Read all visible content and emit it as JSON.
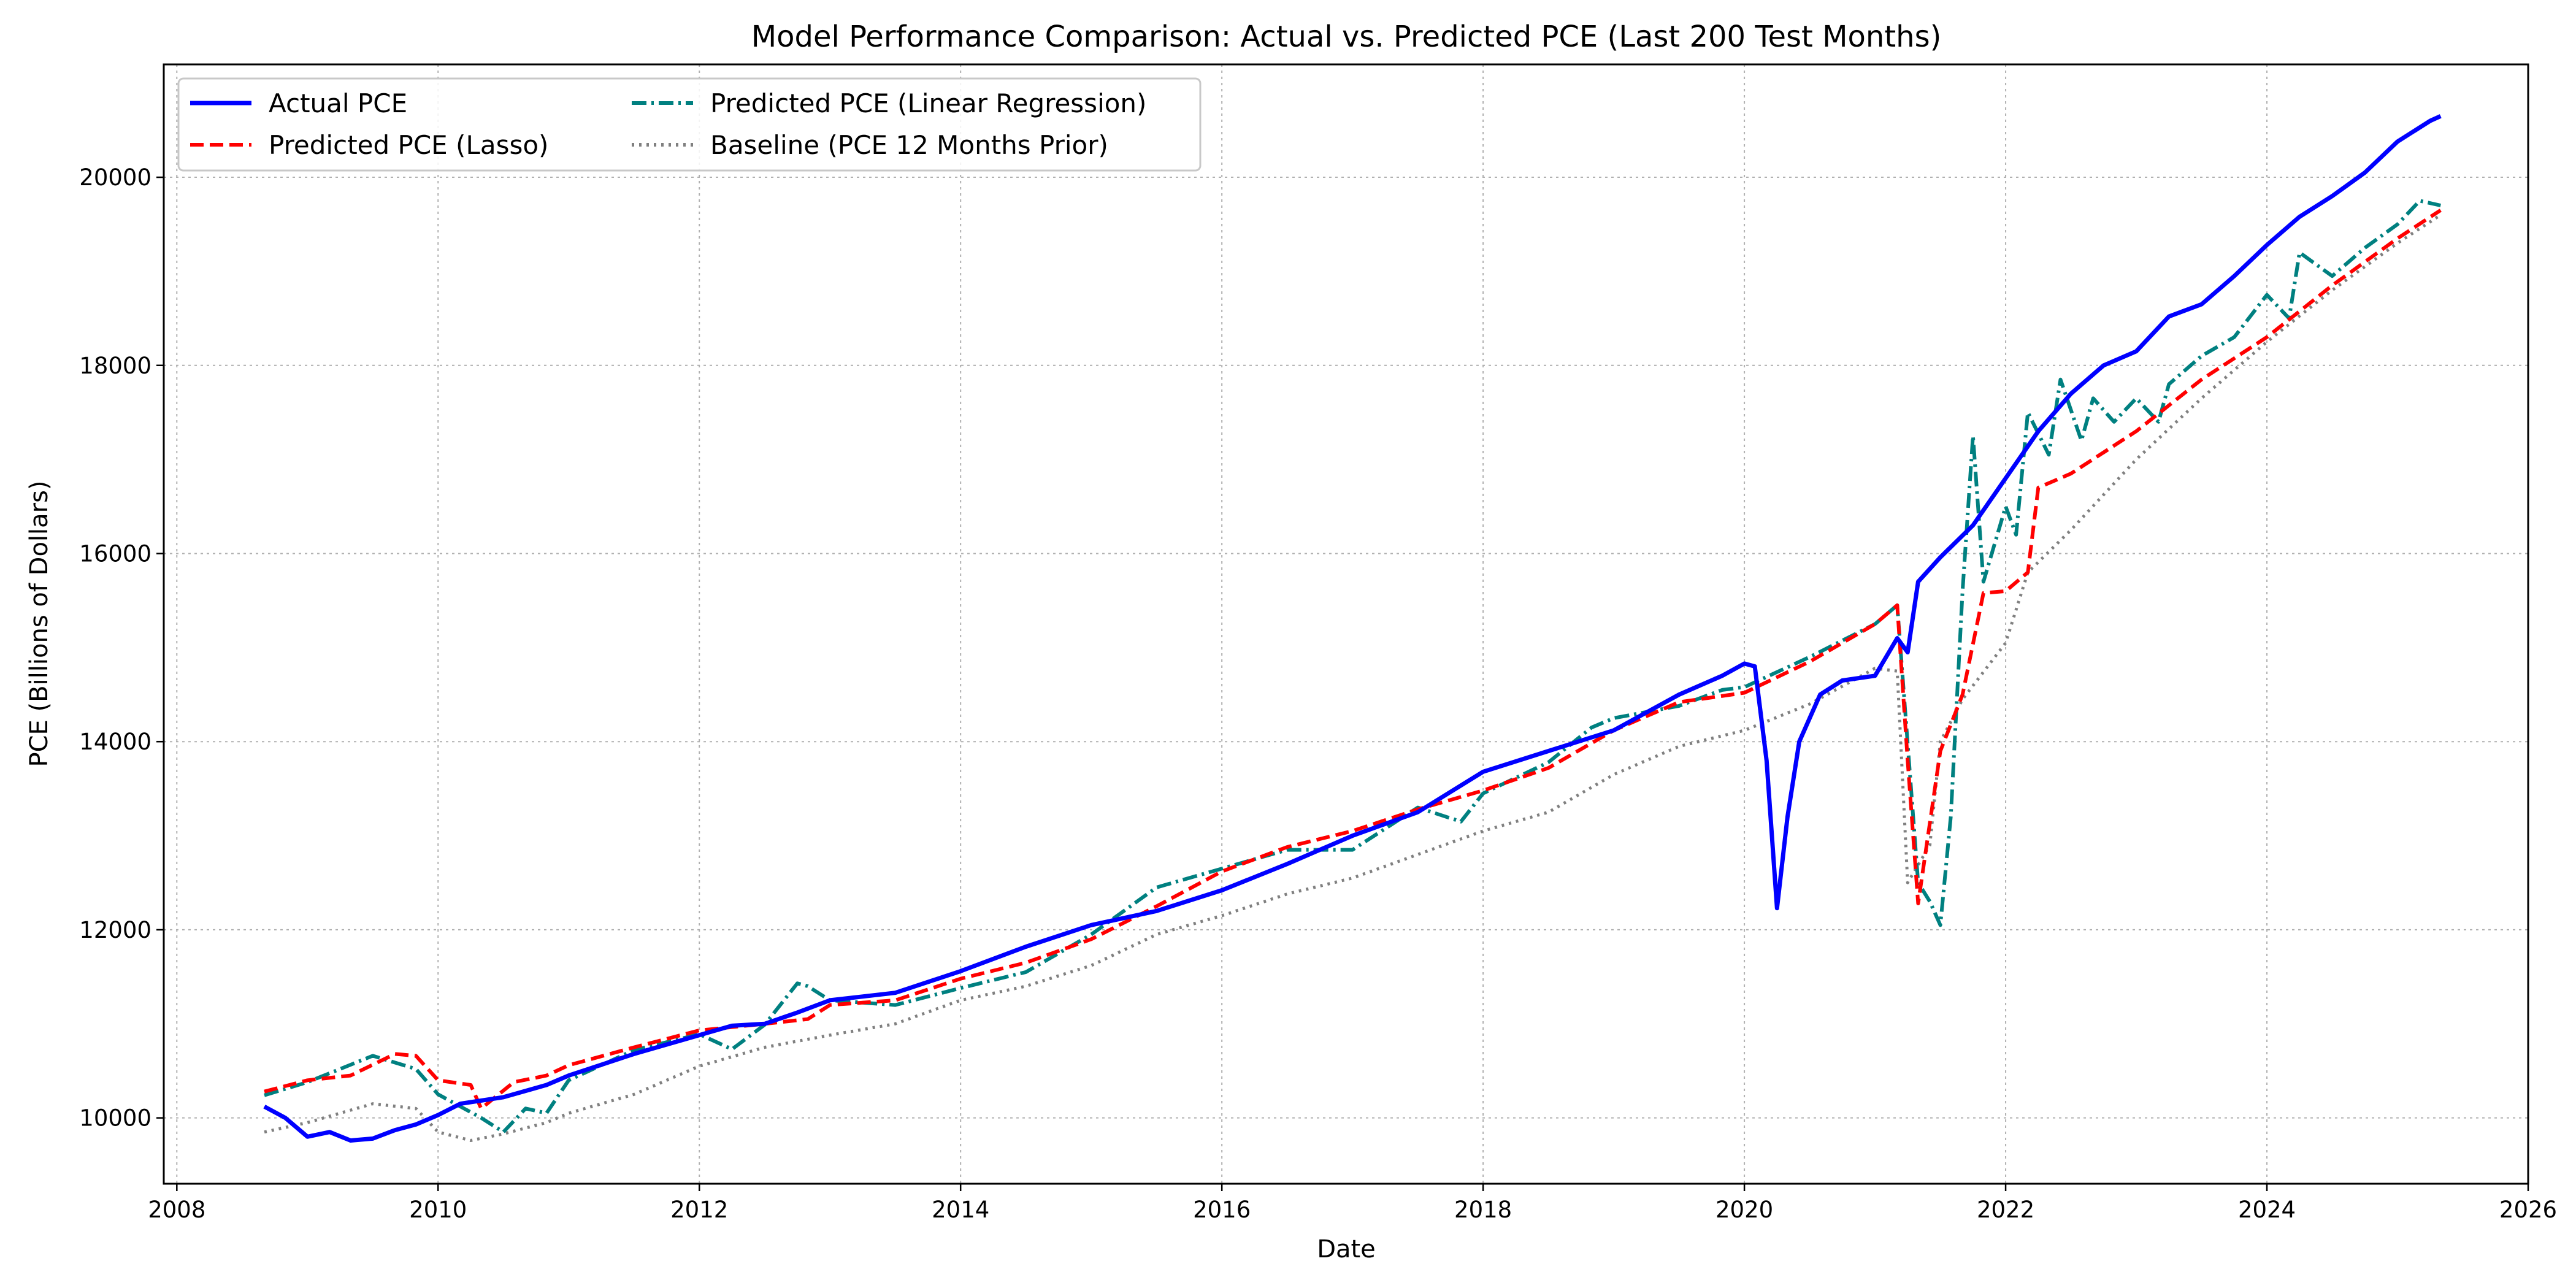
{
  "chart_data": {
    "type": "line",
    "title": "Model Performance Comparison: Actual vs. Predicted PCE (Last 200 Test Months)",
    "xlabel": "Date",
    "ylabel": "PCE (Billions of Dollars)",
    "xlim": [
      2007.9,
      2026.0
    ],
    "ylim": [
      9300,
      21200
    ],
    "x_ticks": [
      2008,
      2010,
      2012,
      2014,
      2016,
      2018,
      2020,
      2022,
      2024,
      2026
    ],
    "y_ticks": [
      10000,
      12000,
      14000,
      16000,
      18000,
      20000
    ],
    "grid": true,
    "legend_position": "top-left",
    "series": [
      {
        "name": "Actual PCE",
        "color": "#0000ff",
        "style": "solid",
        "points": [
          [
            2008.67,
            10120
          ],
          [
            2008.83,
            10000
          ],
          [
            2009.0,
            9800
          ],
          [
            2009.17,
            9850
          ],
          [
            2009.33,
            9760
          ],
          [
            2009.5,
            9780
          ],
          [
            2009.67,
            9870
          ],
          [
            2009.83,
            9930
          ],
          [
            2010.0,
            10030
          ],
          [
            2010.17,
            10150
          ],
          [
            2010.5,
            10220
          ],
          [
            2010.83,
            10350
          ],
          [
            2011.0,
            10450
          ],
          [
            2011.5,
            10680
          ],
          [
            2012.0,
            10880
          ],
          [
            2012.25,
            10980
          ],
          [
            2012.5,
            11000
          ],
          [
            2012.75,
            11120
          ],
          [
            2013.0,
            11250
          ],
          [
            2013.5,
            11330
          ],
          [
            2014.0,
            11560
          ],
          [
            2014.5,
            11820
          ],
          [
            2015.0,
            12050
          ],
          [
            2015.5,
            12200
          ],
          [
            2016.0,
            12420
          ],
          [
            2016.5,
            12700
          ],
          [
            2017.0,
            13000
          ],
          [
            2017.5,
            13250
          ],
          [
            2018.0,
            13680
          ],
          [
            2018.5,
            13900
          ],
          [
            2019.0,
            14120
          ],
          [
            2019.5,
            14500
          ],
          [
            2019.83,
            14700
          ],
          [
            2020.0,
            14830
          ],
          [
            2020.08,
            14800
          ],
          [
            2020.17,
            13800
          ],
          [
            2020.25,
            12230
          ],
          [
            2020.33,
            13200
          ],
          [
            2020.42,
            14000
          ],
          [
            2020.58,
            14500
          ],
          [
            2020.75,
            14650
          ],
          [
            2021.0,
            14700
          ],
          [
            2021.17,
            15100
          ],
          [
            2021.25,
            14950
          ],
          [
            2021.33,
            15700
          ],
          [
            2021.5,
            15960
          ],
          [
            2021.75,
            16300
          ],
          [
            2022.0,
            16800
          ],
          [
            2022.25,
            17300
          ],
          [
            2022.5,
            17700
          ],
          [
            2022.75,
            18000
          ],
          [
            2023.0,
            18150
          ],
          [
            2023.25,
            18520
          ],
          [
            2023.5,
            18650
          ],
          [
            2023.75,
            18950
          ],
          [
            2024.0,
            19280
          ],
          [
            2024.25,
            19580
          ],
          [
            2024.5,
            19800
          ],
          [
            2024.75,
            20050
          ],
          [
            2025.0,
            20380
          ],
          [
            2025.25,
            20600
          ],
          [
            2025.33,
            20650
          ]
        ]
      },
      {
        "name": "Predicted PCE (Lasso)",
        "color": "#ff0000",
        "style": "dashed",
        "points": [
          [
            2008.67,
            10280
          ],
          [
            2009.0,
            10400
          ],
          [
            2009.33,
            10450
          ],
          [
            2009.67,
            10680
          ],
          [
            2009.83,
            10660
          ],
          [
            2010.0,
            10400
          ],
          [
            2010.25,
            10350
          ],
          [
            2010.33,
            10100
          ],
          [
            2010.58,
            10380
          ],
          [
            2010.83,
            10450
          ],
          [
            2011.0,
            10560
          ],
          [
            2011.5,
            10750
          ],
          [
            2012.0,
            10930
          ],
          [
            2012.5,
            11000
          ],
          [
            2012.83,
            11050
          ],
          [
            2013.0,
            11200
          ],
          [
            2013.5,
            11250
          ],
          [
            2014.0,
            11480
          ],
          [
            2014.5,
            11650
          ],
          [
            2015.0,
            11900
          ],
          [
            2015.5,
            12250
          ],
          [
            2016.0,
            12620
          ],
          [
            2016.5,
            12880
          ],
          [
            2017.0,
            13050
          ],
          [
            2017.5,
            13280
          ],
          [
            2018.0,
            13480
          ],
          [
            2018.5,
            13720
          ],
          [
            2019.0,
            14120
          ],
          [
            2019.5,
            14420
          ],
          [
            2020.0,
            14520
          ],
          [
            2020.5,
            14850
          ],
          [
            2021.0,
            15250
          ],
          [
            2021.17,
            15450
          ],
          [
            2021.25,
            13800
          ],
          [
            2021.33,
            12280
          ],
          [
            2021.5,
            13900
          ],
          [
            2021.67,
            14500
          ],
          [
            2021.83,
            15580
          ],
          [
            2022.0,
            15600
          ],
          [
            2022.17,
            15800
          ],
          [
            2022.25,
            16700
          ],
          [
            2022.5,
            16850
          ],
          [
            2023.0,
            17300
          ],
          [
            2023.5,
            17850
          ],
          [
            2024.0,
            18300
          ],
          [
            2024.5,
            18850
          ],
          [
            2025.0,
            19350
          ],
          [
            2025.33,
            19650
          ]
        ]
      },
      {
        "name": "Predicted PCE (Linear Regression)",
        "color": "#008080",
        "style": "dashdot",
        "points": [
          [
            2008.67,
            10240
          ],
          [
            2009.0,
            10380
          ],
          [
            2009.5,
            10660
          ],
          [
            2009.83,
            10520
          ],
          [
            2010.0,
            10250
          ],
          [
            2010.33,
            10000
          ],
          [
            2010.5,
            9850
          ],
          [
            2010.67,
            10100
          ],
          [
            2010.83,
            10050
          ],
          [
            2011.0,
            10400
          ],
          [
            2011.5,
            10720
          ],
          [
            2012.0,
            10890
          ],
          [
            2012.25,
            10730
          ],
          [
            2012.5,
            10990
          ],
          [
            2012.75,
            11430
          ],
          [
            2012.83,
            11400
          ],
          [
            2013.0,
            11250
          ],
          [
            2013.5,
            11200
          ],
          [
            2014.0,
            11380
          ],
          [
            2014.5,
            11550
          ],
          [
            2015.0,
            11950
          ],
          [
            2015.5,
            12450
          ],
          [
            2016.0,
            12650
          ],
          [
            2016.5,
            12850
          ],
          [
            2017.0,
            12850
          ],
          [
            2017.5,
            13300
          ],
          [
            2017.83,
            13150
          ],
          [
            2018.0,
            13450
          ],
          [
            2018.5,
            13780
          ],
          [
            2018.83,
            14150
          ],
          [
            2019.0,
            14250
          ],
          [
            2019.5,
            14380
          ],
          [
            2019.83,
            14550
          ],
          [
            2020.0,
            14580
          ],
          [
            2020.5,
            14900
          ],
          [
            2021.0,
            15250
          ],
          [
            2021.17,
            15450
          ],
          [
            2021.33,
            12500
          ],
          [
            2021.42,
            12300
          ],
          [
            2021.5,
            12050
          ],
          [
            2021.58,
            13200
          ],
          [
            2021.67,
            15600
          ],
          [
            2021.75,
            17250
          ],
          [
            2021.83,
            15700
          ],
          [
            2022.0,
            16500
          ],
          [
            2022.08,
            16200
          ],
          [
            2022.17,
            17500
          ],
          [
            2022.33,
            17050
          ],
          [
            2022.42,
            17850
          ],
          [
            2022.58,
            17200
          ],
          [
            2022.67,
            17650
          ],
          [
            2022.83,
            17400
          ],
          [
            2023.0,
            17650
          ],
          [
            2023.17,
            17400
          ],
          [
            2023.25,
            17800
          ],
          [
            2023.5,
            18100
          ],
          [
            2023.75,
            18300
          ],
          [
            2024.0,
            18750
          ],
          [
            2024.17,
            18500
          ],
          [
            2024.25,
            19200
          ],
          [
            2024.5,
            18950
          ],
          [
            2024.75,
            19250
          ],
          [
            2025.0,
            19500
          ],
          [
            2025.17,
            19750
          ],
          [
            2025.33,
            19700
          ]
        ]
      },
      {
        "name": "Baseline (PCE 12 Months Prior)",
        "color": "#808080",
        "style": "dotted",
        "points": [
          [
            2008.67,
            9850
          ],
          [
            2009.0,
            9950
          ],
          [
            2009.5,
            10150
          ],
          [
            2009.83,
            10100
          ],
          [
            2010.0,
            9850
          ],
          [
            2010.25,
            9760
          ],
          [
            2010.5,
            9830
          ],
          [
            2010.83,
            9950
          ],
          [
            2011.0,
            10050
          ],
          [
            2011.5,
            10250
          ],
          [
            2012.0,
            10550
          ],
          [
            2012.5,
            10750
          ],
          [
            2013.0,
            10880
          ],
          [
            2013.5,
            11000
          ],
          [
            2014.0,
            11250
          ],
          [
            2014.5,
            11400
          ],
          [
            2015.0,
            11620
          ],
          [
            2015.5,
            11950
          ],
          [
            2016.0,
            12150
          ],
          [
            2016.5,
            12380
          ],
          [
            2017.0,
            12550
          ],
          [
            2017.5,
            12800
          ],
          [
            2018.0,
            13050
          ],
          [
            2018.5,
            13250
          ],
          [
            2019.0,
            13650
          ],
          [
            2019.5,
            13950
          ],
          [
            2020.0,
            14120
          ],
          [
            2020.5,
            14400
          ],
          [
            2021.0,
            14780
          ],
          [
            2021.17,
            14750
          ],
          [
            2021.25,
            12500
          ],
          [
            2021.42,
            12900
          ],
          [
            2021.5,
            14000
          ],
          [
            2021.67,
            14450
          ],
          [
            2022.0,
            15050
          ],
          [
            2022.17,
            15800
          ],
          [
            2022.5,
            16250
          ],
          [
            2023.0,
            17000
          ],
          [
            2023.5,
            17650
          ],
          [
            2024.0,
            18250
          ],
          [
            2024.5,
            18800
          ],
          [
            2025.0,
            19300
          ],
          [
            2025.33,
            19600
          ]
        ]
      }
    ]
  }
}
